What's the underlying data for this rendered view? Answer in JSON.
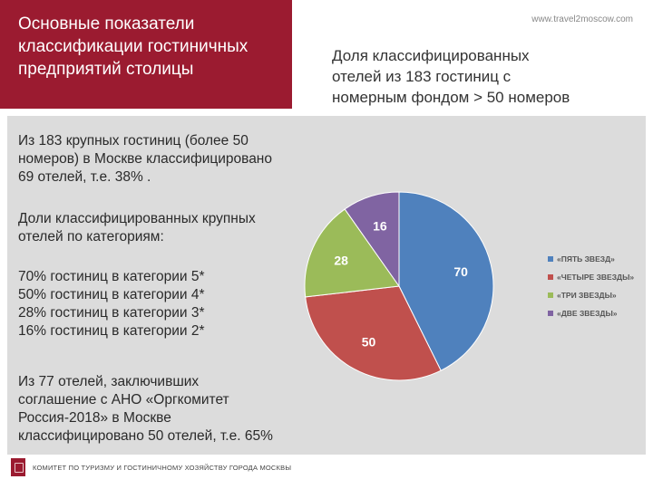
{
  "header": {
    "title_lines": [
      "Основные показатели",
      "классификации гостиничных",
      "предприятий столицы"
    ],
    "site_url": "www.travel2moscow.com"
  },
  "subtitle_lines": [
    "Доля классифицированных",
    "отелей из 183 гостиниц с",
    "номерным фондом > 50 номеров"
  ],
  "body": {
    "p1": [
      "Из 183 крупных гостиниц (более 50",
      "номеров) в Москве классифицировано",
      "69 отелей, т.е. 38% ."
    ],
    "p2": [
      "Доли классифицированных крупных",
      "отелей по категориям:"
    ],
    "p3": [
      "70% гостиниц в категории 5*",
      "50% гостиниц в категории 4*",
      "28% гостиниц в категории 3*",
      "16% гостиниц в категории 2*"
    ],
    "p4": [
      "Из 77 отелей, заключивших",
      "соглашение с АНО «Оргкомитет",
      "Россия-2018» в Москве",
      "классифицировано 50 отелей, т.е. 65%"
    ]
  },
  "chart_data": {
    "type": "pie",
    "categories": [
      "«ПЯТЬ ЗВЕЗД»",
      "«ЧЕТЫРЕ ЗВЕЗДЫ»",
      "«ТРИ ЗВЕЗДЫ»",
      "«ДВЕ ЗВЕЗДЫ»"
    ],
    "values": [
      70,
      50,
      28,
      16
    ],
    "data_labels": [
      "70",
      "50",
      "28",
      "16"
    ],
    "colors": [
      "#4f81bd",
      "#c0504d",
      "#9bbb59",
      "#8064a2"
    ],
    "legend_placement": "right",
    "start_angle_deg": 0,
    "direction": "clockwise"
  },
  "footer": {
    "text": "КОМИТЕТ ПО ТУРИЗМУ И ГОСТИНИЧНОМУ ХОЗЯЙСТВУ ГОРОДА МОСКВЫ"
  }
}
